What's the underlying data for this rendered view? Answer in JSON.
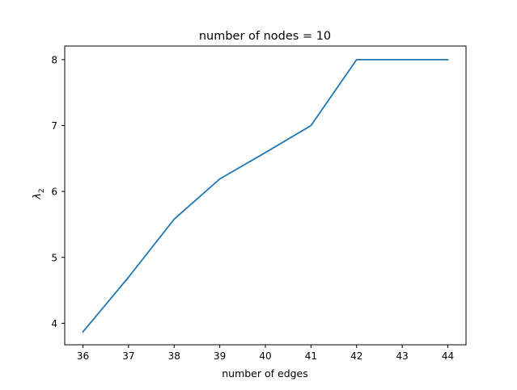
{
  "chart_data": {
    "type": "line",
    "title": "number of nodes = 10",
    "xlabel": "number of edges",
    "ylabel_symbol": "λ",
    "ylabel_subscript": "2",
    "x": [
      36,
      37,
      38,
      39,
      40,
      41,
      42,
      43,
      44
    ],
    "series": [
      {
        "values": [
          3.87,
          4.7,
          5.58,
          6.19,
          6.59,
          7.0,
          8.0,
          8.0,
          8.0
        ],
        "color": "#1f77b4"
      }
    ],
    "xticks": [
      "36",
      "37",
      "38",
      "39",
      "40",
      "41",
      "42",
      "43",
      "44"
    ],
    "yticks": [
      "4",
      "5",
      "6",
      "7",
      "8"
    ],
    "xlim": [
      35.6,
      44.4
    ],
    "ylim": [
      3.674,
      8.2065
    ],
    "grid": false,
    "legend": "none"
  }
}
